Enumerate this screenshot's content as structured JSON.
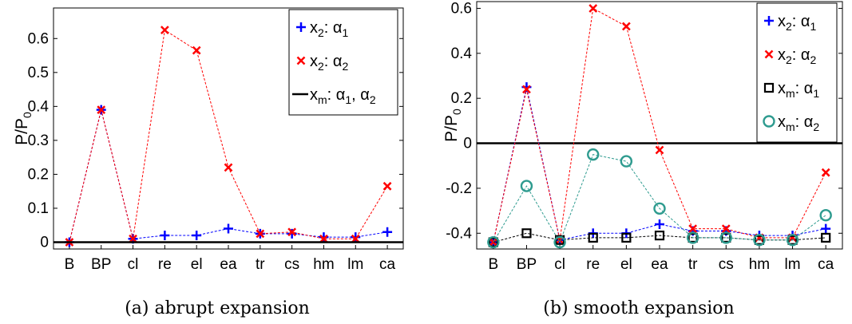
{
  "chart_data": [
    {
      "type": "line",
      "caption": "(a) abrupt expansion",
      "ylabel": "P/P",
      "ylabel_sub": "0",
      "categories": [
        "B",
        "BP",
        "cl",
        "re",
        "el",
        "ea",
        "tr",
        "cs",
        "hm",
        "lm",
        "ca"
      ],
      "ylim": [
        -0.02,
        0.69
      ],
      "yticks": [
        0,
        0.1,
        0.2,
        0.3,
        0.4,
        0.5,
        0.6
      ],
      "ytick_labels": [
        "0",
        "0.1",
        "0.2",
        "0.3",
        "0.4",
        "0.5",
        "0.6"
      ],
      "grid": false,
      "legend_position": "top-right",
      "series": [
        {
          "name_main": "x",
          "name_sub": "2",
          "name_rest": ": α",
          "name_sub2": "1",
          "name_tail": "",
          "marker": "plus",
          "color": "#0000ff",
          "values": [
            0,
            0.39,
            0.01,
            0.02,
            0.02,
            0.04,
            0.025,
            0.025,
            0.015,
            0.015,
            0.03
          ]
        },
        {
          "name_main": "x",
          "name_sub": "2",
          "name_rest": ": α",
          "name_sub2": "2",
          "name_tail": "",
          "marker": "x",
          "color": "#ff0000",
          "values": [
            0,
            0.39,
            0.01,
            0.625,
            0.565,
            0.22,
            0.025,
            0.03,
            0.01,
            0.01,
            0.165
          ]
        },
        {
          "name_main": "x",
          "name_sub": "m",
          "name_rest": ": α",
          "name_sub2": "1",
          "name_tail": ", α",
          "name_sub3": "2",
          "marker": "line",
          "color": "#000000",
          "values": [
            0,
            0,
            0,
            0,
            0,
            0,
            0,
            0,
            0,
            0,
            0
          ]
        }
      ]
    },
    {
      "type": "line",
      "caption": "(b) smooth expansion",
      "ylabel": "P/P",
      "ylabel_sub": "0",
      "categories": [
        "B",
        "BP",
        "cl",
        "re",
        "el",
        "ea",
        "tr",
        "cs",
        "hm",
        "lm",
        "ca"
      ],
      "ylim": [
        -0.47,
        0.63
      ],
      "yticks": [
        -0.4,
        -0.2,
        0,
        0.2,
        0.4,
        0.6
      ],
      "ytick_labels": [
        "-0.4",
        "-0.2",
        "0",
        "0.2",
        "0.4",
        "0.6"
      ],
      "grid": false,
      "legend_position": "top-right",
      "series": [
        {
          "name_main": "x",
          "name_sub": "2",
          "name_rest": ": α",
          "name_sub2": "1",
          "name_tail": "",
          "marker": "plus",
          "color": "#0000ff",
          "values": [
            -0.44,
            0.25,
            -0.43,
            -0.4,
            -0.4,
            -0.36,
            -0.39,
            -0.39,
            -0.41,
            -0.41,
            -0.38
          ]
        },
        {
          "name_main": "x",
          "name_sub": "2",
          "name_rest": ": α",
          "name_sub2": "2",
          "name_tail": "",
          "marker": "x",
          "color": "#ff0000",
          "values": [
            -0.44,
            0.24,
            -0.43,
            0.6,
            0.52,
            -0.03,
            -0.38,
            -0.38,
            -0.42,
            -0.42,
            -0.13
          ]
        },
        {
          "name_main": "x",
          "name_sub": "m",
          "name_rest": ": α",
          "name_sub2": "1",
          "name_tail": "",
          "marker": "square",
          "color": "#000000",
          "values": [
            -0.44,
            -0.4,
            -0.43,
            -0.42,
            -0.42,
            -0.41,
            -0.42,
            -0.42,
            -0.43,
            -0.43,
            -0.42
          ]
        },
        {
          "name_main": "x",
          "name_sub": "m",
          "name_rest": ": α",
          "name_sub2": "2",
          "name_tail": "",
          "marker": "circle",
          "color": "#2e9b8f",
          "values": [
            -0.44,
            -0.19,
            -0.44,
            -0.05,
            -0.08,
            -0.29,
            -0.42,
            -0.42,
            -0.43,
            -0.43,
            -0.32
          ]
        }
      ],
      "reference_line": 0
    }
  ]
}
